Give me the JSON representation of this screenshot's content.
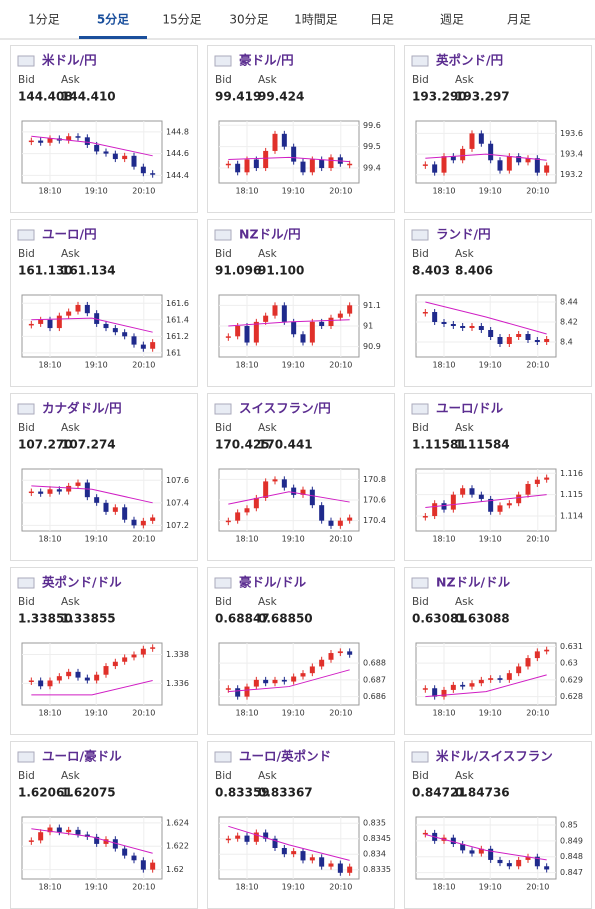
{
  "tabs": [
    "1分足",
    "5分足",
    "15分足",
    "30分足",
    "1時間足",
    "日足",
    "週足",
    "月足"
  ],
  "active_tab": 1,
  "labels": {
    "bid": "Bid",
    "ask": "Ask"
  },
  "xticks": [
    "18:10",
    "19:10",
    "20:10"
  ],
  "colors": {
    "up": "#e0302a",
    "down": "#1f2a8c",
    "ma": "#d01ec4"
  },
  "cards": [
    {
      "pair": "米ドル/円",
      "bid": "144.408",
      "ask": "144.410",
      "chart": {
        "ylim": [
          144.33,
          144.9
        ],
        "yticks": [
          144.4,
          144.6,
          144.8
        ],
        "values": [
          144.72,
          144.7,
          144.74,
          144.72,
          144.76,
          144.75,
          144.68,
          144.62,
          144.6,
          144.55,
          144.58,
          144.48,
          144.42,
          144.41
        ],
        "ma": [
          144.76,
          144.7,
          144.58
        ]
      }
    },
    {
      "pair": "豪ドル/円",
      "bid": "99.419",
      "ask": "99.424",
      "chart": {
        "ylim": [
          99.33,
          99.62
        ],
        "yticks": [
          99.4,
          99.5,
          99.6
        ],
        "values": [
          99.42,
          99.38,
          99.44,
          99.4,
          99.48,
          99.56,
          99.5,
          99.43,
          99.38,
          99.44,
          99.4,
          99.45,
          99.42,
          99.42
        ],
        "ma": [
          99.44,
          99.45,
          99.43
        ]
      }
    },
    {
      "pair": "英ポンド/円",
      "bid": "193.290",
      "ask": "193.297",
      "chart": {
        "ylim": [
          193.12,
          193.72
        ],
        "yticks": [
          193.2,
          193.4,
          193.6
        ],
        "values": [
          193.3,
          193.22,
          193.38,
          193.34,
          193.45,
          193.6,
          193.5,
          193.34,
          193.24,
          193.38,
          193.32,
          193.36,
          193.22,
          193.29
        ],
        "ma": [
          193.36,
          193.4,
          193.34
        ]
      }
    },
    {
      "pair": "ユーロ/円",
      "bid": "161.130",
      "ask": "161.134",
      "chart": {
        "ylim": [
          160.95,
          161.7
        ],
        "yticks": [
          161,
          161.2,
          161.4,
          161.6
        ],
        "values": [
          161.35,
          161.4,
          161.3,
          161.45,
          161.5,
          161.58,
          161.48,
          161.35,
          161.3,
          161.25,
          161.2,
          161.1,
          161.05,
          161.13
        ],
        "ma": [
          161.4,
          161.42,
          161.25
        ]
      }
    },
    {
      "pair": "NZドル/円",
      "bid": "91.096",
      "ask": "91.100",
      "chart": {
        "ylim": [
          90.85,
          91.15
        ],
        "yticks": [
          90.9,
          91,
          91.1
        ],
        "values": [
          90.95,
          91.0,
          90.92,
          91.02,
          91.05,
          91.1,
          91.02,
          90.96,
          90.92,
          91.02,
          91.0,
          91.04,
          91.06,
          91.1
        ],
        "ma": [
          91.0,
          91.02,
          91.03
        ]
      }
    },
    {
      "pair": "ランド/円",
      "bid": "8.403",
      "ask": "8.406",
      "chart": {
        "ylim": [
          8.385,
          8.447
        ],
        "yticks": [
          8.4,
          8.42,
          8.44
        ],
        "values": [
          8.43,
          8.42,
          8.418,
          8.416,
          8.414,
          8.416,
          8.412,
          8.405,
          8.398,
          8.405,
          8.408,
          8.402,
          8.4,
          8.403
        ],
        "ma": [
          8.44,
          8.425,
          8.408
        ]
      }
    },
    {
      "pair": "カナダドル/円",
      "bid": "107.270",
      "ask": "107.274",
      "chart": {
        "ylim": [
          107.15,
          107.7
        ],
        "yticks": [
          107.2,
          107.4,
          107.6
        ],
        "values": [
          107.5,
          107.48,
          107.52,
          107.5,
          107.55,
          107.58,
          107.45,
          107.4,
          107.32,
          107.36,
          107.25,
          107.2,
          107.24,
          107.27
        ],
        "ma": [
          107.55,
          107.52,
          107.4
        ]
      }
    },
    {
      "pair": "スイスフラン/円",
      "bid": "170.425",
      "ask": "170.441",
      "chart": {
        "ylim": [
          170.3,
          170.9
        ],
        "yticks": [
          170.4,
          170.6,
          170.8
        ],
        "values": [
          170.4,
          170.48,
          170.52,
          170.62,
          170.78,
          170.8,
          170.72,
          170.65,
          170.7,
          170.55,
          170.4,
          170.35,
          170.4,
          170.43
        ],
        "ma": [
          170.56,
          170.68,
          170.58
        ]
      }
    },
    {
      "pair": "ユーロ/ドル",
      "bid": "1.11581",
      "ask": "1.11584",
      "chart": {
        "ylim": [
          1.1133,
          1.1162
        ],
        "yticks": [
          1.114,
          1.115,
          1.116
        ],
        "values": [
          1.114,
          1.1146,
          1.1143,
          1.115,
          1.1153,
          1.115,
          1.1148,
          1.1142,
          1.1145,
          1.1146,
          1.115,
          1.1155,
          1.1157,
          1.1158
        ],
        "ma": [
          1.1144,
          1.1147,
          1.115
        ]
      }
    },
    {
      "pair": "英ポンド/ドル",
      "bid": "1.33850",
      "ask": "1.33855",
      "chart": {
        "ylim": [
          1.3345,
          1.3388
        ],
        "yticks": [
          1.336,
          1.338
        ],
        "values": [
          1.3362,
          1.3358,
          1.3362,
          1.3365,
          1.3368,
          1.3364,
          1.3362,
          1.3366,
          1.3372,
          1.3375,
          1.3378,
          1.338,
          1.3384,
          1.3385
        ],
        "ma": [
          1.3352,
          1.3352,
          1.3362
        ]
      }
    },
    {
      "pair": "豪ドル/ドル",
      "bid": "0.68847",
      "ask": "0.68850",
      "chart": {
        "ylim": [
          0.6855,
          0.6892
        ],
        "yticks": [
          0.686,
          0.687,
          0.688
        ],
        "values": [
          0.6865,
          0.686,
          0.6866,
          0.687,
          0.6868,
          0.687,
          0.6869,
          0.6872,
          0.6874,
          0.6878,
          0.6882,
          0.6886,
          0.6887,
          0.6885
        ],
        "ma": [
          0.6863,
          0.6866,
          0.6876
        ]
      }
    },
    {
      "pair": "NZドル/ドル",
      "bid": "0.63081",
      "ask": "0.63088",
      "chart": {
        "ylim": [
          0.6275,
          0.6312
        ],
        "yticks": [
          0.628,
          0.629,
          0.63,
          0.631
        ],
        "values": [
          0.6285,
          0.628,
          0.6284,
          0.6287,
          0.6286,
          0.6288,
          0.629,
          0.6291,
          0.629,
          0.6294,
          0.6298,
          0.6303,
          0.6307,
          0.6308
        ],
        "ma": [
          0.628,
          0.6283,
          0.6293
        ]
      }
    },
    {
      "pair": "ユーロ/豪ドル",
      "bid": "1.62061",
      "ask": "1.62075",
      "chart": {
        "ylim": [
          1.6192,
          1.6245
        ],
        "yticks": [
          1.62,
          1.622,
          1.624
        ],
        "values": [
          1.6225,
          1.6232,
          1.6236,
          1.6232,
          1.6234,
          1.623,
          1.6228,
          1.6222,
          1.6226,
          1.6218,
          1.6212,
          1.6208,
          1.62,
          1.6206
        ],
        "ma": [
          1.6235,
          1.6228,
          1.6214
        ]
      }
    },
    {
      "pair": "ユーロ/英ポンド",
      "bid": "0.83359",
      "ask": "0.83367",
      "chart": {
        "ylim": [
          0.8332,
          0.8352
        ],
        "yticks": [
          0.8335,
          0.834,
          0.8345,
          0.835
        ],
        "values": [
          0.8345,
          0.8346,
          0.8344,
          0.8347,
          0.8345,
          0.8342,
          0.834,
          0.8341,
          0.8338,
          0.8339,
          0.8336,
          0.8337,
          0.8334,
          0.8336
        ],
        "ma": [
          0.8349,
          0.8343,
          0.8338
        ]
      }
    },
    {
      "pair": "米ドル/スイスフラン",
      "bid": "0.84721",
      "ask": "0.84736",
      "chart": {
        "ylim": [
          0.8466,
          0.8505
        ],
        "yticks": [
          0.847,
          0.848,
          0.849,
          0.85
        ],
        "values": [
          0.8495,
          0.849,
          0.8492,
          0.8488,
          0.8484,
          0.8482,
          0.8485,
          0.8478,
          0.8476,
          0.8474,
          0.8478,
          0.848,
          0.8474,
          0.8472
        ],
        "ma": [
          0.8494,
          0.8484,
          0.8478
        ]
      }
    }
  ]
}
